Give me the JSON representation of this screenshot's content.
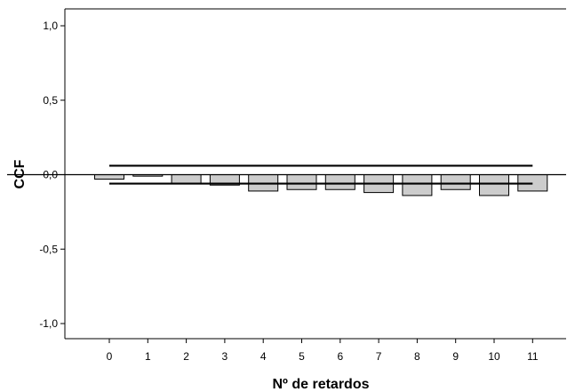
{
  "chart_data": {
    "type": "bar",
    "ylabel": "CCF",
    "xlabel": "Nº de retardos",
    "categories": [
      "0",
      "1",
      "2",
      "3",
      "4",
      "5",
      "6",
      "7",
      "8",
      "9",
      "10",
      "11"
    ],
    "series": [
      {
        "values": [
          -0.03,
          -0.01,
          -0.06,
          -0.07,
          -0.11,
          -0.1,
          -0.1,
          -0.12,
          -0.14,
          -0.1,
          -0.14,
          -0.11
        ]
      }
    ],
    "confidence_limits": {
      "upper": 0.06,
      "lower": -0.06
    },
    "ylim": [
      -1.0,
      1.0
    ],
    "yticks": [
      1.0,
      0.5,
      0.0,
      -0.5,
      -1.0
    ],
    "ytick_labels": [
      "1,0",
      "0,5",
      "0,0",
      "-0,5",
      "-1,0"
    ],
    "grid": false,
    "legend": "none",
    "colors": {
      "bar_fill": "#cccccc",
      "bar_stroke": "#000000",
      "line": "#000000"
    }
  }
}
